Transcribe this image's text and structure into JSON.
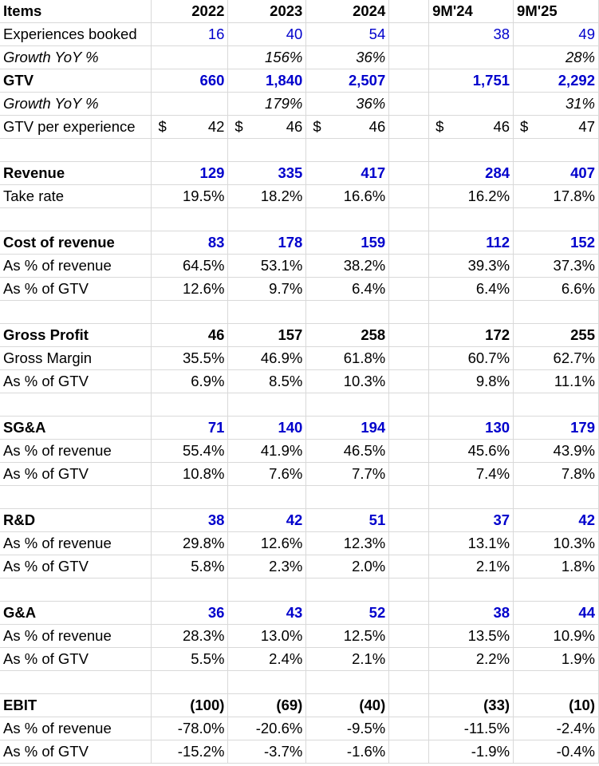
{
  "header": {
    "items_label": "Items",
    "years": [
      "2022",
      "2023",
      "2024",
      "",
      "9M'24",
      "9M'25"
    ]
  },
  "rows": [
    {
      "label": "Experiences booked",
      "style": "normal",
      "values": [
        "16",
        "40",
        "54",
        "",
        "38",
        "49"
      ],
      "blue": true
    },
    {
      "label": "Growth YoY %",
      "style": "italic",
      "values": [
        "",
        "156%",
        "36%",
        "",
        "",
        "28%"
      ]
    },
    {
      "label": "GTV",
      "style": "bold",
      "values": [
        "660",
        "1,840",
        "2,507",
        "",
        "1,751",
        "2,292"
      ],
      "blue": true
    },
    {
      "label": "Growth YoY %",
      "style": "italic",
      "values": [
        "",
        "179%",
        "36%",
        "",
        "",
        "31%"
      ]
    },
    {
      "label": "GTV per experience",
      "style": "normal",
      "currency": "$",
      "values": [
        "42",
        "46",
        "46",
        "",
        "46",
        "47"
      ]
    },
    {
      "label": "",
      "style": "spacer",
      "values": [
        "",
        "",
        "",
        "",
        "",
        ""
      ]
    },
    {
      "label": "Revenue",
      "style": "bold",
      "values": [
        "129",
        "335",
        "417",
        "",
        "284",
        "407"
      ],
      "blue": true
    },
    {
      "label": "Take rate",
      "style": "normal",
      "values": [
        "19.5%",
        "18.2%",
        "16.6%",
        "",
        "16.2%",
        "17.8%"
      ]
    },
    {
      "label": "",
      "style": "spacer",
      "values": [
        "",
        "",
        "",
        "",
        "",
        ""
      ]
    },
    {
      "label": "Cost of revenue",
      "style": "bold",
      "values": [
        "83",
        "178",
        "159",
        "",
        "112",
        "152"
      ],
      "blue": true
    },
    {
      "label": "As % of revenue",
      "style": "normal",
      "values": [
        "64.5%",
        "53.1%",
        "38.2%",
        "",
        "39.3%",
        "37.3%"
      ]
    },
    {
      "label": "As % of GTV",
      "style": "normal",
      "values": [
        "12.6%",
        "9.7%",
        "6.4%",
        "",
        "6.4%",
        "6.6%"
      ]
    },
    {
      "label": "",
      "style": "spacer",
      "values": [
        "",
        "",
        "",
        "",
        "",
        ""
      ]
    },
    {
      "label": "Gross Profit",
      "style": "bold",
      "values": [
        "46",
        "157",
        "258",
        "",
        "172",
        "255"
      ]
    },
    {
      "label": "Gross Margin",
      "style": "normal",
      "values": [
        "35.5%",
        "46.9%",
        "61.8%",
        "",
        "60.7%",
        "62.7%"
      ]
    },
    {
      "label": "As % of GTV",
      "style": "normal",
      "values": [
        "6.9%",
        "8.5%",
        "10.3%",
        "",
        "9.8%",
        "11.1%"
      ]
    },
    {
      "label": "",
      "style": "spacer",
      "values": [
        "",
        "",
        "",
        "",
        "",
        ""
      ]
    },
    {
      "label": "SG&A",
      "style": "bold",
      "values": [
        "71",
        "140",
        "194",
        "",
        "130",
        "179"
      ],
      "blue": true
    },
    {
      "label": "As % of revenue",
      "style": "normal",
      "values": [
        "55.4%",
        "41.9%",
        "46.5%",
        "",
        "45.6%",
        "43.9%"
      ]
    },
    {
      "label": "As % of GTV",
      "style": "normal",
      "values": [
        "10.8%",
        "7.6%",
        "7.7%",
        "",
        "7.4%",
        "7.8%"
      ]
    },
    {
      "label": "",
      "style": "spacer",
      "values": [
        "",
        "",
        "",
        "",
        "",
        ""
      ]
    },
    {
      "label": "R&D",
      "style": "bold",
      "values": [
        "38",
        "42",
        "51",
        "",
        "37",
        "42"
      ],
      "blue": true
    },
    {
      "label": "As % of revenue",
      "style": "normal",
      "values": [
        "29.8%",
        "12.6%",
        "12.3%",
        "",
        "13.1%",
        "10.3%"
      ]
    },
    {
      "label": "As % of GTV",
      "style": "normal",
      "values": [
        "5.8%",
        "2.3%",
        "2.0%",
        "",
        "2.1%",
        "1.8%"
      ]
    },
    {
      "label": "",
      "style": "spacer",
      "values": [
        "",
        "",
        "",
        "",
        "",
        ""
      ]
    },
    {
      "label": "G&A",
      "style": "bold",
      "values": [
        "36",
        "43",
        "52",
        "",
        "38",
        "44"
      ],
      "blue": true
    },
    {
      "label": "As % of revenue",
      "style": "normal",
      "values": [
        "28.3%",
        "13.0%",
        "12.5%",
        "",
        "13.5%",
        "10.9%"
      ]
    },
    {
      "label": "As % of GTV",
      "style": "normal",
      "values": [
        "5.5%",
        "2.4%",
        "2.1%",
        "",
        "2.2%",
        "1.9%"
      ]
    },
    {
      "label": "",
      "style": "spacer",
      "values": [
        "",
        "",
        "",
        "",
        "",
        ""
      ]
    },
    {
      "label": "EBIT",
      "style": "bold",
      "values": [
        "(100)",
        "(69)",
        "(40)",
        "",
        "(33)",
        "(10)"
      ]
    },
    {
      "label": "As % of revenue",
      "style": "normal",
      "values": [
        "-78.0%",
        "-20.6%",
        "-9.5%",
        "",
        "-11.5%",
        "-2.4%"
      ]
    },
    {
      "label": "As % of GTV",
      "style": "normal",
      "values": [
        "-15.2%",
        "-3.7%",
        "-1.6%",
        "",
        "-1.9%",
        "-0.4%"
      ]
    }
  ],
  "colors": {
    "blue": "#0000cc",
    "text": "#000000",
    "grid": "#d9d9d9"
  }
}
